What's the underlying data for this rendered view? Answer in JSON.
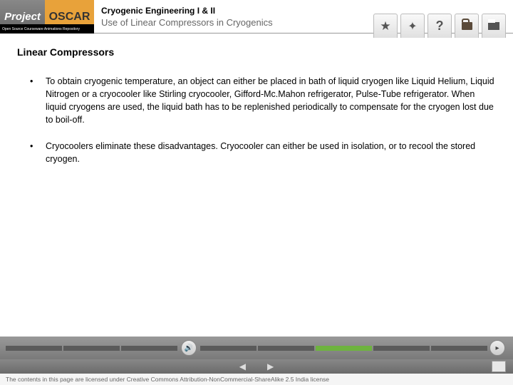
{
  "header": {
    "logo_project": "Project",
    "logo_oscar": "OSCAR",
    "logo_subtitle": "Open Source Courseware Animations Repository",
    "course_title": "Cryogenic Engineering I & II",
    "topic_title": "Use of Linear Compressors in Cryogenics"
  },
  "content": {
    "section_title": "Linear Compressors",
    "bullets": [
      "To obtain cryogenic temperature, an object can either be placed in bath of liquid cryogen like Liquid Helium, Liquid Nitrogen or a cryocooler like Stirling cryocooler, Gifford-Mc.Mahon refrigerator, Pulse-Tube refrigerator. When liquid cryogens are used, the liquid bath has to be replenished periodically to compensate for the cryogen lost due to boil-off.",
      "Cryocoolers eliminate these disadvantages. Cryocooler can either be used in isolation, or to recool the stored cryogen."
    ]
  },
  "footer": {
    "license": "The contents in this page are licensed under Creative Commons Attribution-NonCommercial-ShareAlike 2.5 India license",
    "progress_total": 8,
    "progress_active": 6
  },
  "colors": {
    "accent_green": "#6eb33f",
    "header_gray": "#7a7a7a",
    "oscar_orange": "#e8a23a"
  }
}
